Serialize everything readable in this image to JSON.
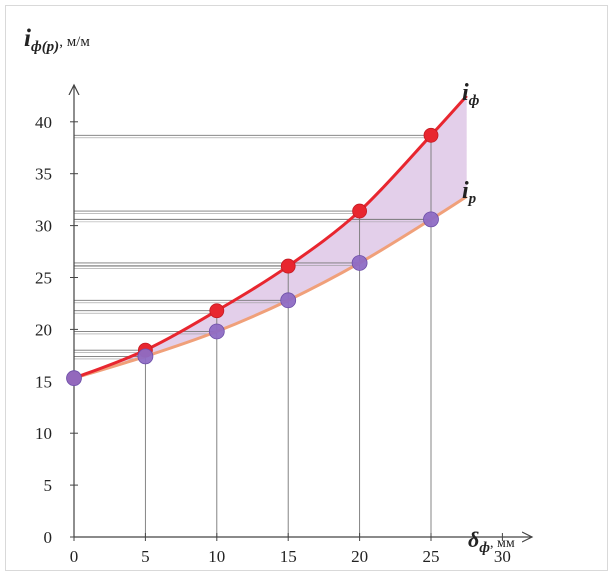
{
  "chart_data": {
    "type": "line",
    "x_axis": {
      "label_symbol": "δ",
      "label_subscript": "ф",
      "label_unit": ", мм",
      "ticks": [
        "0",
        "5",
        "10",
        "15",
        "20",
        "25",
        "30"
      ],
      "range": [
        0,
        30
      ]
    },
    "y_axis": {
      "label_symbol": "i",
      "label_subscript": "ф(р)",
      "label_unit": ", м/м",
      "ticks": [
        "0",
        "5",
        "10",
        "15",
        "20",
        "25",
        "30",
        "35",
        "40"
      ],
      "range": [
        0,
        44
      ]
    },
    "series": [
      {
        "name": "ф",
        "label_symbol": "i",
        "label_subscript": "ф",
        "color": "#e8262f",
        "points": [
          [
            0,
            15.3
          ],
          [
            5,
            18.0
          ],
          [
            10,
            21.8
          ],
          [
            15,
            26.1
          ],
          [
            20,
            31.4
          ],
          [
            25,
            38.7
          ]
        ],
        "curve": [
          [
            0,
            15.3
          ],
          [
            5,
            18.0
          ],
          [
            10,
            21.8
          ],
          [
            15,
            26.1
          ],
          [
            20,
            31.4
          ],
          [
            25,
            38.7
          ],
          [
            27.5,
            42.5
          ]
        ]
      },
      {
        "name": "р",
        "label_symbol": "i",
        "label_subscript": "р",
        "color": "#f0a07a",
        "marker_color": "#8e6cc4",
        "points": [
          [
            0,
            15.3
          ],
          [
            5,
            17.4
          ],
          [
            10,
            19.8
          ],
          [
            15,
            22.8
          ],
          [
            20,
            26.4
          ],
          [
            25,
            30.6
          ]
        ],
        "curve": [
          [
            0,
            15.3
          ],
          [
            5,
            17.4
          ],
          [
            10,
            19.8
          ],
          [
            15,
            22.8
          ],
          [
            20,
            26.4
          ],
          [
            25,
            30.6
          ],
          [
            27.5,
            32.8
          ]
        ]
      }
    ],
    "fill_between_color": "#d9bfe3",
    "grid": false,
    "reference_lines": true
  }
}
